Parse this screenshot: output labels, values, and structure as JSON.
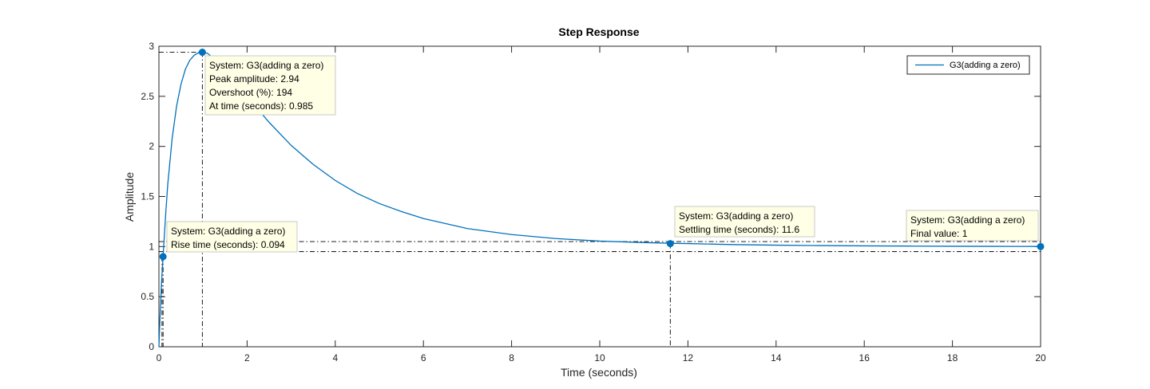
{
  "chart_data": {
    "type": "line",
    "title": "Step Response",
    "xlabel": "Time (seconds)",
    "ylabel": "Amplitude",
    "xlim": [
      0,
      20
    ],
    "ylim": [
      0,
      3
    ],
    "xticks": [
      0,
      2,
      4,
      6,
      8,
      10,
      12,
      14,
      16,
      18,
      20
    ],
    "yticks": [
      0,
      0.5,
      1,
      1.5,
      2,
      2.5,
      3
    ],
    "xtick_labels": [
      "0",
      "2",
      "4",
      "6",
      "8",
      "10",
      "12",
      "14",
      "16",
      "18",
      "20"
    ],
    "ytick_labels": [
      "0",
      "0.5",
      "1",
      "1.5",
      "2",
      "2.5",
      "3"
    ],
    "grid": false,
    "legend": {
      "position": "top-right",
      "entries": [
        "G3(adding a zero)"
      ]
    },
    "series": [
      {
        "name": "G3(adding a zero)",
        "color": "#0072BD",
        "x": [
          0,
          0.03,
          0.06,
          0.094,
          0.15,
          0.2,
          0.3,
          0.4,
          0.5,
          0.6,
          0.7,
          0.8,
          0.9,
          0.985,
          1.1,
          1.3,
          1.5,
          1.8,
          2.0,
          2.5,
          3.0,
          3.5,
          4.0,
          4.5,
          5.0,
          5.5,
          6.0,
          7.0,
          8.0,
          9.0,
          10.0,
          11.0,
          11.6,
          12.0,
          13.0,
          14.0,
          15.0,
          16.0,
          17.0,
          18.0,
          19.0,
          20.0
        ],
        "y": [
          0,
          0.35,
          0.65,
          0.9,
          1.3,
          1.62,
          2.08,
          2.4,
          2.62,
          2.77,
          2.86,
          2.91,
          2.935,
          2.94,
          2.93,
          2.86,
          2.77,
          2.61,
          2.5,
          2.24,
          2.01,
          1.82,
          1.66,
          1.53,
          1.43,
          1.35,
          1.28,
          1.18,
          1.12,
          1.08,
          1.055,
          1.04,
          1.033,
          1.03,
          1.02,
          1.014,
          1.01,
          1.007,
          1.005,
          1.003,
          1.002,
          1.001
        ]
      }
    ],
    "markers": [
      {
        "name": "peak",
        "x": 0.985,
        "y": 2.94
      },
      {
        "name": "rise",
        "x": 0.094,
        "y": 0.9
      },
      {
        "name": "settling",
        "x": 11.6,
        "y": 1.03
      },
      {
        "name": "final",
        "x": 20,
        "y": 1
      }
    ],
    "guide_lines": {
      "rise_time_low_x": 0.07,
      "rise_time_y": 0.9,
      "settling_upper_y": 1.05,
      "settling_lower_y": 0.95,
      "settling_x": 11.6,
      "peak_x": 0.985,
      "peak_y": 2.94
    },
    "annotations": [
      {
        "name": "peak",
        "lines": [
          "System: G3(adding a zero)",
          "Peak amplitude: 2.94",
          "Overshoot (%): 194",
          "At time (seconds): 0.985"
        ]
      },
      {
        "name": "rise",
        "lines": [
          "System: G3(adding a zero)",
          "Rise time (seconds): 0.094"
        ]
      },
      {
        "name": "settling",
        "lines": [
          "System: G3(adding a zero)",
          "Settling time (seconds): 11.6"
        ]
      },
      {
        "name": "final",
        "lines": [
          "System: G3(adding a zero)",
          "Final value: 1"
        ]
      }
    ],
    "colors": {
      "line": "#0072BD",
      "axes": "#262626",
      "datatip_fill": "#FFFFE6",
      "datatip_border": "#C8C8C8",
      "guide": "#000000"
    }
  }
}
